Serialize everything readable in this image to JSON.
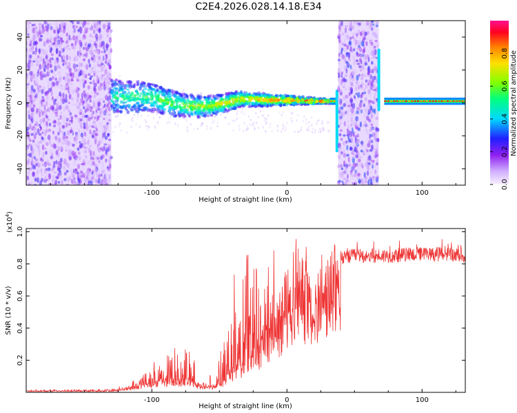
{
  "title": "C2E4.2026.028.14.18.E34",
  "chart_data": [
    {
      "type": "heatmap",
      "xlabel": "Height of straight line (km)",
      "ylabel": "Frequency (Hz)",
      "xlim": [
        -193,
        132
      ],
      "ylim": [
        -50,
        50
      ],
      "xticks": [
        -100,
        0,
        100
      ],
      "xtick_labels": [
        "-100",
        "0",
        "100"
      ],
      "yticks": [
        -40,
        -20,
        0,
        20,
        40
      ],
      "ytick_labels": [
        "-40",
        "-20",
        "0",
        "20",
        "40"
      ],
      "colorbar": {
        "label": "Normalized spectral amplitude",
        "range": [
          0,
          1
        ],
        "ticks": [
          0,
          0.2,
          0.4,
          0.6,
          0.8
        ],
        "tick_labels": [
          "0.0",
          "0.2",
          "0.4",
          "0.6",
          "0.8"
        ],
        "colormap_stops": [
          "#f8f0ff",
          "#d0b0ff",
          "#9020f0",
          "#2020ff",
          "#00d8ff",
          "#00ff80",
          "#80ff00",
          "#ffe000",
          "#ff8000",
          "#ff0020",
          "#ff1090"
        ]
      },
      "regions": [
        {
          "name": "broadband noise",
          "x": [
            -193,
            -130
          ],
          "freq_range": [
            -50,
            50
          ],
          "amplitude": 0.15
        },
        {
          "name": "converging signal",
          "x": [
            -130,
            32
          ],
          "freq_center_start": 4,
          "freq_center_end": 1,
          "amplitude": 0.45
        },
        {
          "name": "tonal line",
          "x": [
            32,
            37
          ],
          "freq": 1,
          "amplitude": 0.9
        },
        {
          "name": "spike",
          "x": 37,
          "freq_range": [
            -30,
            8
          ],
          "amplitude": 0.4
        },
        {
          "name": "broadband noise",
          "x": [
            38,
            68
          ],
          "freq_range": [
            -50,
            50
          ],
          "amplitude": 0.2
        },
        {
          "name": "spike",
          "x": 68,
          "freq_range": [
            -5,
            33
          ],
          "amplitude": 0.4
        },
        {
          "name": "tonal line",
          "x": [
            72,
            132
          ],
          "freq": 1,
          "amplitude": 0.95
        }
      ]
    },
    {
      "type": "line",
      "xlabel": "Height of straight line (km)",
      "ylabel": "SNR (10 * v/v)",
      "scale_label": "(x10",
      "scale_exponent": "4",
      "xlim": [
        -193,
        132
      ],
      "ylim": [
        0,
        1.02
      ],
      "xticks": [
        -100,
        0,
        100
      ],
      "xtick_labels": [
        "-100",
        "0",
        "100"
      ],
      "yticks": [
        0.2,
        0.4,
        0.6,
        0.8,
        1.0
      ],
      "ytick_labels": [
        "0.2",
        "0.4",
        "0.6",
        "0.8",
        "1.0"
      ],
      "color": "#ee3333",
      "series": [
        {
          "name": "SNR",
          "envelope": {
            "x": [
              -193,
              -130,
              -122,
              -110,
              -100,
              -92,
              -85,
              -75,
              -70,
              -65,
              -60,
              -52,
              -45,
              -40,
              -35,
              -30,
              -25,
              -20,
              -15,
              -10,
              -5,
              0,
              5,
              10,
              15,
              20,
              25,
              30,
              35,
              40,
              45,
              50,
              60,
              70,
              80,
              90,
              100,
              110,
              120,
              132
            ],
            "base": [
              0.01,
              0.01,
              0.02,
              0.04,
              0.06,
              0.08,
              0.08,
              0.09,
              0.08,
              0.05,
              0.04,
              0.05,
              0.1,
              0.15,
              0.2,
              0.25,
              0.3,
              0.36,
              0.42,
              0.48,
              0.54,
              0.6,
              0.64,
              0.66,
              0.68,
              0.7,
              0.74,
              0.78,
              0.81,
              0.83,
              0.84,
              0.85,
              0.85,
              0.85,
              0.85,
              0.86,
              0.86,
              0.86,
              0.86,
              0.85
            ],
            "peak": [
              0.02,
              0.02,
              0.05,
              0.1,
              0.18,
              0.25,
              0.3,
              0.3,
              0.25,
              0.1,
              0.08,
              0.2,
              0.45,
              0.7,
              0.85,
              0.92,
              0.85,
              0.9,
              0.9,
              0.92,
              0.8,
              0.85,
              0.95,
              1.0,
              0.9,
              0.85,
              0.88,
              0.9,
              0.93,
              0.92,
              0.92,
              0.93,
              0.95,
              0.93,
              0.93,
              0.93,
              0.93,
              0.95,
              0.95,
              0.92
            ]
          }
        }
      ]
    }
  ]
}
